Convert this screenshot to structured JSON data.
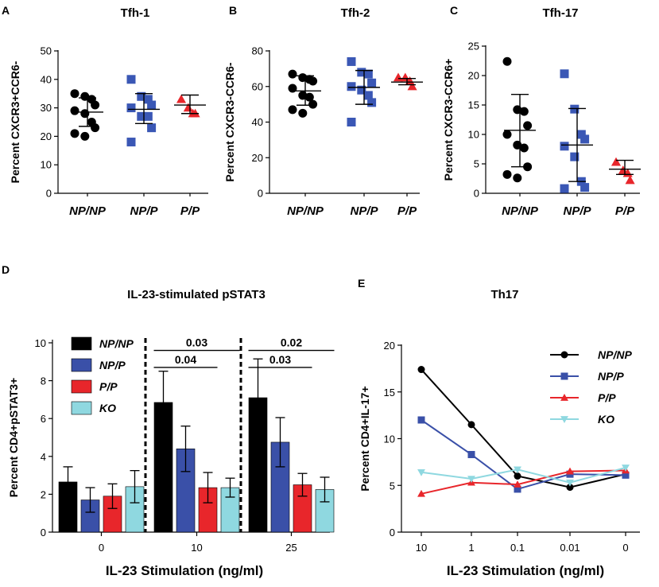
{
  "chart_data": [
    {
      "panel": "A",
      "type": "scatter",
      "title": "Tfh-1",
      "ylabel": "Percent CXCR3+CCR6-",
      "ylim": [
        0,
        50
      ],
      "yticks": [
        0,
        10,
        20,
        30,
        40,
        50
      ],
      "categories": [
        "NP/NP",
        "NP/P",
        "P/P"
      ],
      "colors": [
        "#000000",
        "#3a57b5",
        "#e8262b"
      ],
      "markers": [
        "circle",
        "square",
        "triangle"
      ],
      "groups": [
        {
          "name": "NP/NP",
          "mean": 28.5,
          "sd_low": 23.5,
          "sd_high": 33.5,
          "points": [
            35,
            34,
            33,
            31,
            29,
            28,
            25,
            23,
            21,
            20
          ]
        },
        {
          "name": "NP/P",
          "mean": 29.5,
          "sd_low": 24.5,
          "sd_high": 35,
          "points": [
            40,
            34,
            33,
            31,
            30,
            27,
            27,
            23,
            18
          ]
        },
        {
          "name": "P/P",
          "mean": 31,
          "sd_low": 28,
          "sd_high": 34.5,
          "points": [
            33,
            30,
            28,
            28
          ]
        }
      ]
    },
    {
      "panel": "B",
      "type": "scatter",
      "title": "Tfh-2",
      "ylabel": "Percent CXCR3-CCR6-",
      "ylim": [
        0,
        80
      ],
      "yticks": [
        0,
        20,
        40,
        60,
        80
      ],
      "categories": [
        "NP/NP",
        "NP/P",
        "P/P"
      ],
      "colors": [
        "#000000",
        "#3a57b5",
        "#e8262b"
      ],
      "markers": [
        "circle",
        "square",
        "triangle"
      ],
      "groups": [
        {
          "name": "NP/NP",
          "mean": 57.5,
          "sd_low": 49.5,
          "sd_high": 66,
          "points": [
            67,
            65,
            64,
            63,
            59,
            55,
            54,
            50,
            47,
            45
          ]
        },
        {
          "name": "NP/P",
          "mean": 59.5,
          "sd_low": 50,
          "sd_high": 69,
          "points": [
            74,
            68,
            67,
            62,
            60,
            58,
            55,
            51,
            40
          ]
        },
        {
          "name": "P/P",
          "mean": 62.5,
          "sd_low": 61,
          "sd_high": 64.5,
          "points": [
            65,
            65,
            63,
            60
          ]
        }
      ]
    },
    {
      "panel": "C",
      "type": "scatter",
      "title": "Tfh-17",
      "ylabel": "Percent CXCR3-CCR6+",
      "ylim": [
        0,
        25
      ],
      "yticks": [
        0,
        5,
        10,
        15,
        20,
        25
      ],
      "categories": [
        "NP/NP",
        "NP/P",
        "P/P"
      ],
      "colors": [
        "#000000",
        "#3a57b5",
        "#e8262b"
      ],
      "markers": [
        "circle",
        "square",
        "triangle"
      ],
      "groups": [
        {
          "name": "NP/NP",
          "mean": 10.7,
          "sd_low": 4.5,
          "sd_high": 16.8,
          "points": [
            22.4,
            14.2,
            13.9,
            11.5,
            10,
            8.2,
            7.7,
            4.5,
            3.2,
            2.6
          ]
        },
        {
          "name": "NP/P",
          "mean": 8.2,
          "sd_low": 2,
          "sd_high": 14.4,
          "points": [
            20.3,
            14.3,
            10,
            9.2,
            8,
            6.2,
            2,
            1,
            0.8
          ]
        },
        {
          "name": "P/P",
          "mean": 4.1,
          "sd_low": 3.2,
          "sd_high": 5.6,
          "points": [
            5.3,
            3.9,
            3.4,
            2.2
          ]
        }
      ]
    },
    {
      "panel": "D",
      "type": "bar",
      "title": "IL-23-stimulated pSTAT3",
      "xlabel": "IL-23 Stimulation (ng/ml)",
      "ylabel": "Percent CD4+pSTAT3+",
      "ylim": [
        0,
        10
      ],
      "yticks": [
        0,
        2,
        4,
        6,
        8,
        10
      ],
      "categories": [
        "0",
        "10",
        "25"
      ],
      "series": [
        {
          "name": "NP/NP",
          "color": "#000000",
          "values": [
            2.65,
            6.85,
            7.1
          ],
          "errors": [
            0.8,
            1.65,
            2.05
          ]
        },
        {
          "name": "NP/P",
          "color": "#3a50a8",
          "values": [
            1.7,
            4.4,
            4.75
          ],
          "errors": [
            0.65,
            1.2,
            1.3
          ]
        },
        {
          "name": "P/P",
          "color": "#e8262b",
          "values": [
            1.9,
            2.35,
            2.5
          ],
          "errors": [
            0.65,
            0.8,
            0.6
          ]
        },
        {
          "name": "KO",
          "color": "#8fd8e0",
          "values": [
            2.4,
            2.35,
            2.25
          ],
          "errors": [
            0.85,
            0.5,
            0.65
          ]
        }
      ],
      "annotations": [
        {
          "text": "0.03",
          "group": "10",
          "from": "NP/NP",
          "to": "KO",
          "level": 9.6
        },
        {
          "text": "0.04",
          "group": "10",
          "from": "NP/NP",
          "to": "P/P",
          "level": 8.7
        },
        {
          "text": "0.02",
          "group": "25",
          "from": "NP/NP",
          "to": "KO",
          "level": 9.6
        },
        {
          "text": "0.03",
          "group": "25",
          "from": "NP/NP",
          "to": "P/P",
          "level": 8.7
        }
      ]
    },
    {
      "panel": "E",
      "type": "line",
      "title": "Th17",
      "xlabel": "IL-23 Stimulation (ng/ml)",
      "ylabel": "Percent CD4+IL-17+",
      "ylim": [
        0,
        20
      ],
      "yticks": [
        0,
        5,
        10,
        15,
        20
      ],
      "categories": [
        "10",
        "1",
        "0.1",
        "0.01",
        "0"
      ],
      "series": [
        {
          "name": "NP/NP",
          "color": "#000000",
          "marker": "circle",
          "values": [
            17.4,
            11.5,
            6.0,
            4.8,
            6.2
          ]
        },
        {
          "name": "NP/P",
          "color": "#3a50a8",
          "marker": "square",
          "values": [
            12.0,
            8.3,
            4.6,
            6.2,
            6.1
          ]
        },
        {
          "name": "P/P",
          "color": "#e8262b",
          "marker": "triangle",
          "values": [
            4.1,
            5.3,
            5.1,
            6.5,
            6.6
          ]
        },
        {
          "name": "KO",
          "color": "#8fd8e0",
          "marker": "triangle-down",
          "values": [
            6.4,
            5.7,
            6.7,
            5.3,
            6.9
          ]
        }
      ]
    }
  ]
}
